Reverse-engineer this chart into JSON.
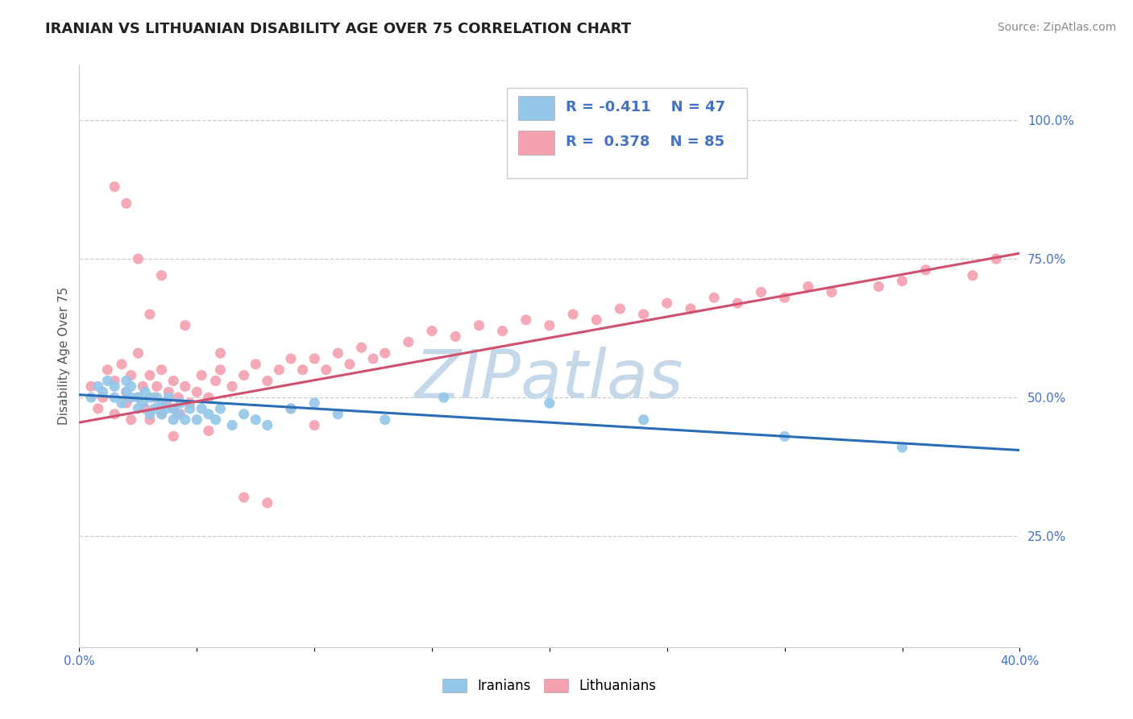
{
  "title": "IRANIAN VS LITHUANIAN DISABILITY AGE OVER 75 CORRELATION CHART",
  "source_text": "Source: ZipAtlas.com",
  "ylabel": "Disability Age Over 75",
  "xlim": [
    0.0,
    0.4
  ],
  "ylim": [
    0.05,
    1.1
  ],
  "xticks": [
    0.0,
    0.05,
    0.1,
    0.15,
    0.2,
    0.25,
    0.3,
    0.35,
    0.4
  ],
  "xticklabels": [
    "0.0%",
    "",
    "",
    "",
    "",
    "",
    "",
    "",
    "40.0%"
  ],
  "yticks": [
    0.25,
    0.5,
    0.75,
    1.0
  ],
  "yticklabels": [
    "25.0%",
    "50.0%",
    "75.0%",
    "100.0%"
  ],
  "iranian_color": "#93C6E8",
  "lithuanian_color": "#F4A0B0",
  "iranian_line_color": "#2A6DB5",
  "lithuanian_line_color": "#D05070",
  "R_iranian": -0.411,
  "N_iranian": 47,
  "R_lithuanian": 0.378,
  "N_lithuanian": 85,
  "background_color": "#ffffff",
  "grid_color": "#cccccc",
  "title_fontsize": 13,
  "axis_label_fontsize": 11,
  "tick_fontsize": 11,
  "legend_fontsize": 13,
  "source_fontsize": 10,
  "watermark_text": "ZIPatlas",
  "watermark_color": "#c5d8ea",
  "watermark_fontsize": 60,
  "iranian_x": [
    0.005,
    0.008,
    0.01,
    0.012,
    0.015,
    0.015,
    0.018,
    0.02,
    0.02,
    0.022,
    0.022,
    0.025,
    0.025,
    0.027,
    0.028,
    0.03,
    0.03,
    0.032,
    0.033,
    0.035,
    0.035,
    0.037,
    0.038,
    0.04,
    0.04,
    0.042,
    0.043,
    0.045,
    0.047,
    0.05,
    0.052,
    0.055,
    0.058,
    0.06,
    0.065,
    0.07,
    0.075,
    0.08,
    0.09,
    0.1,
    0.11,
    0.13,
    0.155,
    0.2,
    0.24,
    0.3,
    0.35
  ],
  "iranian_y": [
    0.5,
    0.52,
    0.51,
    0.53,
    0.5,
    0.52,
    0.49,
    0.51,
    0.53,
    0.5,
    0.52,
    0.48,
    0.5,
    0.49,
    0.51,
    0.47,
    0.5,
    0.48,
    0.5,
    0.47,
    0.49,
    0.48,
    0.5,
    0.46,
    0.48,
    0.47,
    0.49,
    0.46,
    0.48,
    0.46,
    0.48,
    0.47,
    0.46,
    0.48,
    0.45,
    0.47,
    0.46,
    0.45,
    0.48,
    0.49,
    0.47,
    0.46,
    0.5,
    0.49,
    0.46,
    0.43,
    0.41
  ],
  "lithuanian_x": [
    0.005,
    0.008,
    0.01,
    0.012,
    0.015,
    0.015,
    0.018,
    0.02,
    0.02,
    0.022,
    0.022,
    0.025,
    0.025,
    0.027,
    0.028,
    0.03,
    0.03,
    0.032,
    0.033,
    0.035,
    0.035,
    0.037,
    0.038,
    0.04,
    0.04,
    0.042,
    0.043,
    0.045,
    0.047,
    0.05,
    0.052,
    0.055,
    0.058,
    0.06,
    0.065,
    0.07,
    0.075,
    0.08,
    0.085,
    0.09,
    0.095,
    0.1,
    0.105,
    0.11,
    0.115,
    0.12,
    0.125,
    0.13,
    0.14,
    0.15,
    0.16,
    0.17,
    0.18,
    0.19,
    0.2,
    0.21,
    0.22,
    0.23,
    0.24,
    0.25,
    0.26,
    0.27,
    0.28,
    0.29,
    0.3,
    0.31,
    0.32,
    0.34,
    0.35,
    0.36,
    0.38,
    0.39,
    0.025,
    0.03,
    0.035,
    0.02,
    0.045,
    0.06,
    0.04,
    0.055,
    0.07,
    0.08,
    0.015,
    0.09,
    0.1
  ],
  "lithuanian_y": [
    0.52,
    0.48,
    0.5,
    0.55,
    0.47,
    0.53,
    0.56,
    0.49,
    0.51,
    0.54,
    0.46,
    0.58,
    0.5,
    0.52,
    0.48,
    0.46,
    0.54,
    0.5,
    0.52,
    0.47,
    0.55,
    0.49,
    0.51,
    0.48,
    0.53,
    0.5,
    0.47,
    0.52,
    0.49,
    0.51,
    0.54,
    0.5,
    0.53,
    0.55,
    0.52,
    0.54,
    0.56,
    0.53,
    0.55,
    0.57,
    0.55,
    0.57,
    0.55,
    0.58,
    0.56,
    0.59,
    0.57,
    0.58,
    0.6,
    0.62,
    0.61,
    0.63,
    0.62,
    0.64,
    0.63,
    0.65,
    0.64,
    0.66,
    0.65,
    0.67,
    0.66,
    0.68,
    0.67,
    0.69,
    0.68,
    0.7,
    0.69,
    0.7,
    0.71,
    0.73,
    0.72,
    0.75,
    0.75,
    0.65,
    0.72,
    0.85,
    0.63,
    0.58,
    0.43,
    0.44,
    0.32,
    0.31,
    0.88,
    0.48,
    0.45
  ],
  "iranian_line_x0": 0.0,
  "iranian_line_x1": 0.4,
  "iranian_line_y0": 0.505,
  "iranian_line_y1": 0.405,
  "lithuanian_line_x0": 0.0,
  "lithuanian_line_x1": 0.4,
  "lithuanian_line_y0": 0.455,
  "lithuanian_line_y1": 0.76
}
